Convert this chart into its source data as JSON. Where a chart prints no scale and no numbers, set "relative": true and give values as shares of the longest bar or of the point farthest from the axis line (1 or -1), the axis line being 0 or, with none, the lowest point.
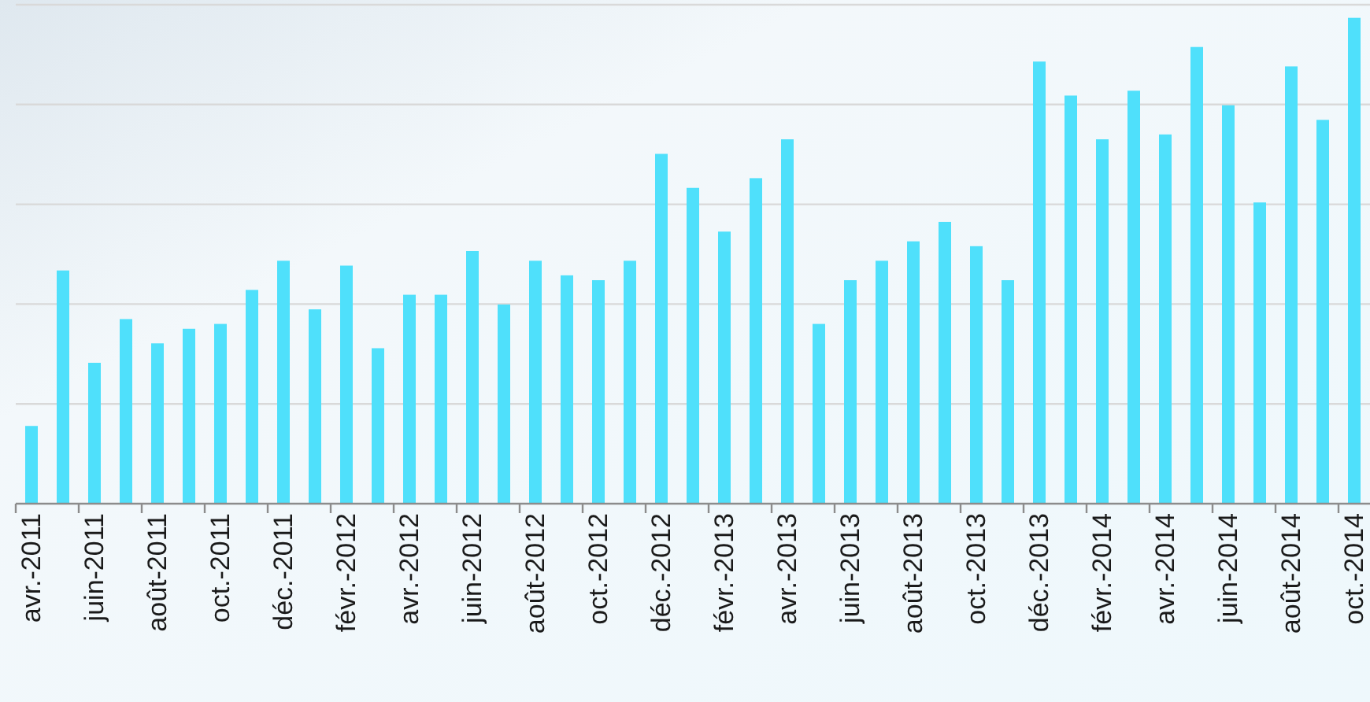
{
  "chart_data": {
    "type": "bar",
    "relative": true,
    "grid": "y",
    "color": "#4fe0fb",
    "categories": [
      "avr.-2011",
      null,
      "juin-2011",
      null,
      "août-2011",
      null,
      "oct.-2011",
      null,
      "déc.-2011",
      null,
      "févr.-2012",
      null,
      "avr.-2012",
      null,
      "juin-2012",
      null,
      "août-2012",
      null,
      "oct.-2012",
      null,
      "déc.-2012",
      null,
      "févr.-2013",
      null,
      "avr.-2013",
      null,
      "juin-2013",
      null,
      "août-2013",
      null,
      "oct.-2013",
      null,
      "déc.-2013",
      null,
      "févr.-2014",
      null,
      "avr.-2014",
      null,
      "juin-2014",
      null,
      "août-2014",
      null,
      "oct.-2014"
    ],
    "values": [
      0.16,
      0.48,
      0.29,
      0.38,
      0.33,
      0.36,
      0.37,
      0.44,
      0.5,
      0.4,
      0.49,
      0.32,
      0.43,
      0.43,
      0.52,
      0.41,
      0.5,
      0.47,
      0.46,
      0.5,
      0.72,
      0.65,
      0.56,
      0.67,
      0.75,
      0.37,
      0.46,
      0.5,
      0.54,
      0.58,
      0.53,
      0.46,
      0.91,
      0.84,
      0.75,
      0.85,
      0.76,
      0.94,
      0.82,
      0.62,
      0.9,
      0.79,
      1
    ]
  }
}
